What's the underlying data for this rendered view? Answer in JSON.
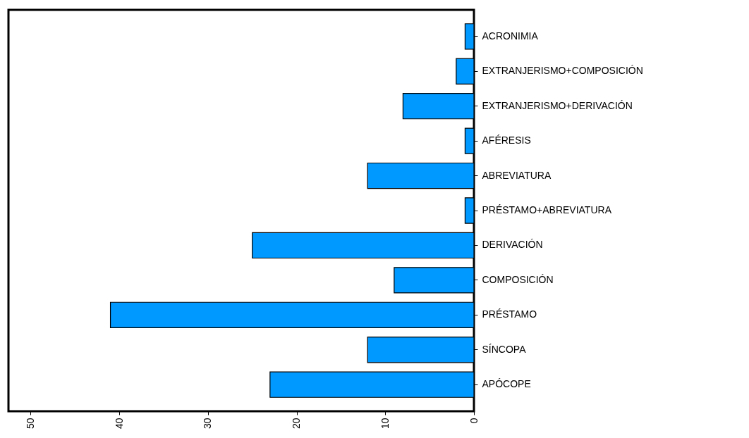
{
  "chart_data": {
    "type": "bar",
    "orientation": "horizontal",
    "categories": [
      "ACRONIMIA",
      "EXTRANJERISMO+COMPOSICIÓN",
      "EXTRANJERISMO+DERIVACIÓN",
      "AFÉRESIS",
      "ABREVIATURA",
      "PRÉSTAMO+ABREVIATURA",
      "DERIVACIÓN",
      "COMPOSICIÓN",
      "PRÉSTAMO",
      "SÍNCOPA",
      "APÓCOPE"
    ],
    "values": [
      1,
      2,
      8,
      1,
      12,
      1,
      25,
      9,
      41,
      12,
      23
    ],
    "color": "#0099ff",
    "xlim": [
      52.5,
      0
    ],
    "xticks": [
      50,
      40,
      30,
      20,
      10,
      0
    ],
    "grid": false
  }
}
